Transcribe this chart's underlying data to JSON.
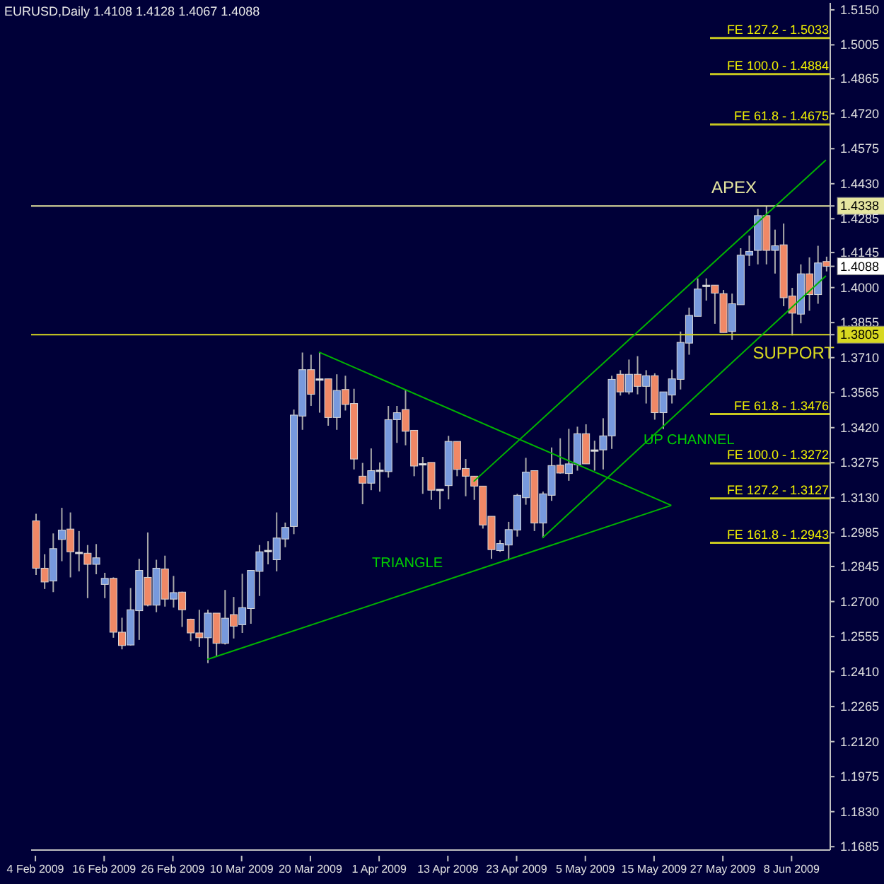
{
  "chart_data": {
    "type": "candlestick",
    "title": "EURUSD,Daily  1.4108 1.4128 1.4067 1.4088",
    "categories": [
      "4 Feb 2009",
      null,
      null,
      null,
      null,
      null,
      null,
      null,
      "16 Feb 2009",
      null,
      null,
      null,
      null,
      null,
      null,
      null,
      "26 Feb 2009",
      null,
      null,
      null,
      null,
      null,
      null,
      null,
      "10 Mar 2009",
      null,
      null,
      null,
      null,
      null,
      null,
      null,
      "20 Mar 2009",
      null,
      null,
      null,
      null,
      null,
      null,
      null,
      "1 Apr 2009",
      null,
      null,
      null,
      null,
      null,
      null,
      null,
      "13 Apr 2009",
      null,
      null,
      null,
      null,
      null,
      null,
      null,
      "23 Apr 2009",
      null,
      null,
      null,
      null,
      null,
      null,
      null,
      "5 May 2009",
      null,
      null,
      null,
      null,
      null,
      null,
      null,
      "15 May 2009",
      null,
      null,
      null,
      null,
      null,
      null,
      null,
      "27 May 2009",
      null,
      null,
      null,
      null,
      null,
      null,
      null,
      "8 Jun 2009",
      null,
      null,
      null,
      null
    ],
    "series": [
      {
        "type": "candlestick",
        "ohlc": [
          [
            1.3034,
            1.3063,
            1.281,
            1.2838
          ],
          [
            1.2838,
            1.2896,
            1.2752,
            1.2781
          ],
          [
            1.2785,
            1.2982,
            1.2739,
            1.2919
          ],
          [
            1.2957,
            1.3088,
            1.2867,
            1.2996
          ],
          [
            1.3,
            1.3069,
            1.28,
            1.2906
          ],
          [
            1.2904,
            1.2992,
            1.2825,
            1.29
          ],
          [
            1.29,
            1.2934,
            1.2714,
            1.2854
          ],
          [
            1.2854,
            1.2938,
            1.2813,
            1.2881
          ],
          [
            1.2771,
            1.2819,
            1.2714,
            1.2796
          ],
          [
            1.2796,
            1.28,
            1.255,
            1.2573
          ],
          [
            1.2573,
            1.2633,
            1.2502,
            1.2518
          ],
          [
            1.252,
            1.2756,
            1.2518,
            1.2666
          ],
          [
            1.2662,
            1.2877,
            1.2541,
            1.2829
          ],
          [
            1.28,
            1.2986,
            1.268,
            1.2685
          ],
          [
            1.2685,
            1.2873,
            1.2656,
            1.2838
          ],
          [
            1.2835,
            1.289,
            1.2679,
            1.271
          ],
          [
            1.271,
            1.2806,
            1.2675,
            1.2737
          ],
          [
            1.2739,
            1.2741,
            1.2595,
            1.2666
          ],
          [
            1.2627,
            1.2629,
            1.2537,
            1.257
          ],
          [
            1.257,
            1.2666,
            1.2512,
            1.255
          ],
          [
            1.255,
            1.2666,
            1.2445,
            1.2652
          ],
          [
            1.2652,
            1.2652,
            1.2474,
            1.2527
          ],
          [
            1.2527,
            1.2748,
            1.2522,
            1.2631
          ],
          [
            1.2646,
            1.2719,
            1.2547,
            1.2598
          ],
          [
            1.2604,
            1.2815,
            1.257,
            1.2675
          ],
          [
            1.2671,
            1.2829,
            1.2608,
            1.2829
          ],
          [
            1.2825,
            1.2934,
            1.2723,
            1.2906
          ],
          [
            1.2908,
            1.295,
            1.2854,
            1.2912
          ],
          [
            1.2873,
            1.3069,
            1.2825,
            1.2963
          ],
          [
            1.2959,
            1.3027,
            1.2925,
            1.3007
          ],
          [
            1.3011,
            1.3495,
            1.2979,
            1.3472
          ],
          [
            1.3468,
            1.3731,
            1.3411,
            1.366
          ],
          [
            1.366,
            1.3722,
            1.351,
            1.3558
          ],
          [
            1.3622,
            1.3731,
            1.3482,
            1.3616
          ],
          [
            1.3622,
            1.3622,
            1.3428,
            1.3462
          ],
          [
            1.3462,
            1.3641,
            1.3411,
            1.3574
          ],
          [
            1.3578,
            1.3635,
            1.3491,
            1.3516
          ],
          [
            1.352,
            1.3581,
            1.3247,
            1.329
          ],
          [
            1.3219,
            1.3274,
            1.3103,
            1.319
          ],
          [
            1.319,
            1.3334,
            1.3161,
            1.3242
          ],
          [
            1.3244,
            1.3276,
            1.3155,
            1.3242
          ],
          [
            1.3238,
            1.351,
            1.3213,
            1.3453
          ],
          [
            1.3453,
            1.351,
            1.3357,
            1.3482
          ],
          [
            1.3495,
            1.3578,
            1.3347,
            1.3405
          ],
          [
            1.3409,
            1.3409,
            1.3219,
            1.3261
          ],
          [
            1.3271,
            1.3299,
            1.3146,
            1.3269
          ],
          [
            1.3276,
            1.3276,
            1.3121,
            1.3161
          ],
          [
            1.3165,
            1.3165,
            1.3082,
            1.3163
          ],
          [
            1.318,
            1.3386,
            1.3123,
            1.3363
          ],
          [
            1.3363,
            1.3363,
            1.3219,
            1.3247
          ],
          [
            1.3251,
            1.329,
            1.3136,
            1.3219
          ],
          [
            1.3219,
            1.3219,
            1.3121,
            1.3178
          ],
          [
            1.3178,
            1.3178,
            1.3002,
            1.3017
          ],
          [
            1.3053,
            1.3053,
            1.2877,
            1.2915
          ],
          [
            1.2911,
            1.2954,
            1.2906,
            1.294
          ],
          [
            1.2934,
            1.303,
            1.2871,
            1.2998
          ],
          [
            1.2996,
            1.3146,
            1.2969,
            1.314
          ],
          [
            1.313,
            1.3295,
            1.3101,
            1.3236
          ],
          [
            1.3242,
            1.3242,
            1.2992,
            1.3025
          ],
          [
            1.3025,
            1.3155,
            1.2963,
            1.3146
          ],
          [
            1.314,
            1.3338,
            1.3117,
            1.3263
          ],
          [
            1.3265,
            1.3376,
            1.323,
            1.3232
          ],
          [
            1.323,
            1.3415,
            1.32,
            1.327
          ],
          [
            1.3267,
            1.3424,
            1.3242,
            1.3395
          ],
          [
            1.3395,
            1.3434,
            1.327,
            1.327
          ],
          [
            1.3328,
            1.3366,
            1.3242,
            1.3326
          ],
          [
            1.3328,
            1.3459,
            1.3247,
            1.3386
          ],
          [
            1.3386,
            1.3635,
            1.3332,
            1.362
          ],
          [
            1.3641,
            1.3658,
            1.3553,
            1.3568
          ],
          [
            1.3568,
            1.3702,
            1.3558,
            1.3641
          ],
          [
            1.3641,
            1.3716,
            1.3558,
            1.3591
          ],
          [
            1.3591,
            1.3658,
            1.352,
            1.3635
          ],
          [
            1.3635,
            1.3645,
            1.3453,
            1.3482
          ],
          [
            1.3482,
            1.3568,
            1.3414,
            1.3568
          ],
          [
            1.3555,
            1.366,
            1.352,
            1.3622
          ],
          [
            1.362,
            1.3818,
            1.3578,
            1.3773
          ],
          [
            1.377,
            1.3917,
            1.3722,
            1.3885
          ],
          [
            1.3881,
            1.4038,
            1.3881,
            1.3994
          ],
          [
            1.401,
            1.4038,
            1.3946,
            1.4008
          ],
          [
            1.401,
            1.401,
            1.385,
            1.3977
          ],
          [
            1.3975,
            1.399,
            1.3814,
            1.3814
          ],
          [
            1.3818,
            1.3975,
            1.3783,
            1.3933
          ],
          [
            1.3929,
            1.4163,
            1.3929,
            1.4134
          ],
          [
            1.4134,
            1.4215,
            1.409,
            1.415
          ],
          [
            1.4154,
            1.4326,
            1.4096,
            1.4298
          ],
          [
            1.4298,
            1.4338,
            1.4096,
            1.4154
          ],
          [
            1.4154,
            1.424,
            1.4058,
            1.4173
          ],
          [
            1.4177,
            1.4265,
            1.3923,
            1.3958
          ],
          [
            1.3965,
            1.3999,
            1.3802,
            1.3894
          ],
          [
            1.389,
            1.4096,
            1.3852,
            1.4057
          ],
          [
            1.4057,
            1.4125,
            1.3904,
            1.3971
          ],
          [
            1.3971,
            1.4173,
            1.3933,
            1.4102
          ],
          [
            1.4108,
            1.4128,
            1.4067,
            1.4088
          ]
        ],
        "colors": [
          "#f08866",
          "#f08866",
          "#7799dd",
          "#7799dd",
          "#f08866",
          "#e8e8e8",
          "#f08866",
          "#7799dd",
          "#7799dd",
          "#f08866",
          "#f08866",
          "#7799dd",
          "#7799dd",
          "#f08866",
          "#7799dd",
          "#f08866",
          "#7799dd",
          "#f08866",
          "#f08866",
          "#f08866",
          "#7799dd",
          "#f08866",
          "#7799dd",
          "#f08866",
          "#7799dd",
          "#7799dd",
          "#7799dd",
          "#e8e8e8",
          "#7799dd",
          "#7799dd",
          "#7799dd",
          "#7799dd",
          "#f08866",
          "#e8e8e8",
          "#f08866",
          "#7799dd",
          "#f08866",
          "#f08866",
          "#f08866",
          "#7799dd",
          "#e8e8e8",
          "#7799dd",
          "#7799dd",
          "#f08866",
          "#f08866",
          "#e8e8e8",
          "#f08866",
          "#e8e8e8",
          "#7799dd",
          "#f08866",
          "#f08866",
          "#f08866",
          "#f08866",
          "#f08866",
          "#7799dd",
          "#7799dd",
          "#7799dd",
          "#7799dd",
          "#f08866",
          "#7799dd",
          "#7799dd",
          "#f08866",
          "#7799dd",
          "#7799dd",
          "#f08866",
          "#e8e8e8",
          "#7799dd",
          "#7799dd",
          "#f08866",
          "#7799dd",
          "#f08866",
          "#7799dd",
          "#f08866",
          "#7799dd",
          "#7799dd",
          "#7799dd",
          "#7799dd",
          "#7799dd",
          "#e8e8e8",
          "#f08866",
          "#f08866",
          "#7799dd",
          "#7799dd",
          "#7799dd",
          "#7799dd",
          "#f08866",
          "#7799dd",
          "#f08866",
          "#f08866",
          "#7799dd",
          "#f08866",
          "#7799dd",
          "#f08866"
        ]
      },
      {
        "type": "line",
        "color": "#00b400",
        "values": [
          null,
          null,
          null,
          null,
          null,
          null,
          null,
          null,
          null,
          null,
          null,
          null,
          null,
          null,
          null,
          null,
          null,
          null,
          null,
          null,
          null,
          null,
          null,
          null,
          null,
          null,
          null,
          null,
          null,
          null,
          null,
          null,
          null,
          1.3733,
          null,
          null,
          null,
          null,
          null,
          null,
          null,
          null,
          null,
          null,
          null,
          null,
          null,
          null,
          null,
          null,
          null,
          null,
          null,
          null,
          null,
          null,
          null,
          null,
          null,
          null,
          null,
          null,
          null,
          null,
          null,
          null,
          null,
          null,
          null,
          null,
          null,
          null,
          null,
          null,
          1.3098,
          null,
          null,
          null,
          null,
          null,
          null,
          null,
          null,
          null,
          null,
          null,
          null,
          null,
          null,
          null,
          null,
          null,
          null
        ]
      },
      {
        "type": "line",
        "color": "#00b400",
        "values": [
          null,
          null,
          null,
          null,
          null,
          null,
          null,
          null,
          null,
          null,
          null,
          null,
          null,
          null,
          null,
          null,
          null,
          null,
          null,
          null,
          1.246,
          null,
          null,
          null,
          null,
          null,
          null,
          null,
          null,
          null,
          null,
          null,
          null,
          null,
          null,
          null,
          null,
          null,
          null,
          null,
          null,
          null,
          null,
          null,
          null,
          null,
          null,
          null,
          null,
          null,
          null,
          null,
          null,
          null,
          null,
          null,
          null,
          null,
          null,
          null,
          null,
          null,
          null,
          null,
          null,
          null,
          null,
          null,
          null,
          null,
          null,
          null,
          null,
          null,
          1.3098,
          null,
          null,
          null,
          null,
          null,
          null,
          null,
          null,
          null,
          null,
          null,
          null,
          null,
          null,
          null,
          null,
          null,
          null
        ]
      },
      {
        "type": "line",
        "color": "#00b400",
        "values": [
          null,
          null,
          null,
          null,
          null,
          null,
          null,
          null,
          null,
          null,
          null,
          null,
          null,
          null,
          null,
          null,
          null,
          null,
          null,
          null,
          null,
          null,
          null,
          null,
          null,
          null,
          null,
          null,
          null,
          null,
          null,
          null,
          null,
          null,
          null,
          null,
          null,
          null,
          null,
          null,
          null,
          null,
          null,
          null,
          null,
          null,
          null,
          null,
          null,
          null,
          null,
          1.3197,
          null,
          null,
          null,
          null,
          null,
          null,
          null,
          null,
          null,
          null,
          null,
          null,
          null,
          null,
          null,
          null,
          null,
          null,
          null,
          null,
          null,
          null,
          null,
          null,
          null,
          null,
          null,
          null,
          null,
          null,
          null,
          null,
          null,
          null,
          null,
          null,
          null,
          null,
          null,
          null,
          1.4528
        ]
      },
      {
        "type": "line",
        "color": "#00b400",
        "values": [
          null,
          null,
          null,
          null,
          null,
          null,
          null,
          null,
          null,
          null,
          null,
          null,
          null,
          null,
          null,
          null,
          null,
          null,
          null,
          null,
          null,
          null,
          null,
          null,
          null,
          null,
          null,
          null,
          null,
          null,
          null,
          null,
          null,
          null,
          null,
          null,
          null,
          null,
          null,
          null,
          null,
          null,
          null,
          null,
          null,
          null,
          null,
          null,
          null,
          null,
          null,
          null,
          null,
          null,
          null,
          null,
          null,
          null,
          null,
          1.2963,
          null,
          null,
          null,
          null,
          null,
          null,
          null,
          null,
          null,
          null,
          null,
          null,
          null,
          null,
          null,
          null,
          null,
          null,
          null,
          null,
          null,
          null,
          null,
          null,
          null,
          null,
          null,
          null,
          null,
          null,
          null,
          null,
          1.4049
        ]
      }
    ],
    "ylim": [
      1.1671,
      1.5179
    ],
    "yticks": [
      {
        "value": 1.515,
        "label": "1.5150"
      },
      {
        "value": 1.5005,
        "label": "1.5005"
      },
      {
        "value": 1.4865,
        "label": "1.4865"
      },
      {
        "value": 1.472,
        "label": "1.4720"
      },
      {
        "value": 1.4575,
        "label": "1.4575"
      },
      {
        "value": 1.443,
        "label": "1.4430"
      },
      {
        "value": 1.4338,
        "label": "1.4338"
      },
      {
        "value": 1.4285,
        "label": "1.4285"
      },
      {
        "value": 1.4145,
        "label": "1.4145"
      },
      {
        "value": 1.4088,
        "label": "1.4088"
      },
      {
        "value": 1.4,
        "label": "1.4000"
      },
      {
        "value": 1.3855,
        "label": "1.3855"
      },
      {
        "value": 1.3805,
        "label": "1.3805"
      },
      {
        "value": 1.371,
        "label": "1.3710"
      },
      {
        "value": 1.3565,
        "label": "1.3565"
      },
      {
        "value": 1.342,
        "label": "1.3420"
      },
      {
        "value": 1.3275,
        "label": "1.3275"
      },
      {
        "value": 1.313,
        "label": "1.3130"
      },
      {
        "value": 1.2985,
        "label": "1.2985"
      },
      {
        "value": 1.2845,
        "label": "1.2845"
      },
      {
        "value": 1.27,
        "label": "1.2700"
      },
      {
        "value": 1.2555,
        "label": "1.2555"
      },
      {
        "value": 1.241,
        "label": "1.2410"
      },
      {
        "value": 1.2265,
        "label": "1.2265"
      },
      {
        "value": 1.212,
        "label": "1.2120"
      },
      {
        "value": 1.1975,
        "label": "1.1975"
      },
      {
        "value": 1.183,
        "label": "1.1830"
      },
      {
        "value": 1.1685,
        "label": "1.1685"
      }
    ],
    "ref_lines": [
      {
        "axis": "y",
        "value": 1.4338,
        "label": "APEX",
        "color": "#e6e6a0"
      },
      {
        "axis": "y",
        "value": 1.3805,
        "label": "SUPPORT",
        "color": "#d8d820"
      },
      {
        "axis": "y",
        "value": 1.5033,
        "label": "FE 127.2 - 1.5033",
        "color": "#c8c820"
      },
      {
        "axis": "y",
        "value": 1.4884,
        "label": "FE 100.0 - 1.4884",
        "color": "#c8c820"
      },
      {
        "axis": "y",
        "value": 1.4675,
        "label": "FE 61.8 - 1.4675",
        "color": "#c8c820"
      },
      {
        "axis": "y",
        "value": 1.3476,
        "label": "FE 61.8 - 1.3476",
        "color": "#c8c820"
      },
      {
        "axis": "y",
        "value": 1.3272,
        "label": "FE 100.0 - 1.3272",
        "color": "#c8c820"
      },
      {
        "axis": "y",
        "value": 1.3127,
        "label": "FE 127.2 - 1.3127",
        "color": "#c8c820"
      },
      {
        "axis": "y",
        "value": 1.2943,
        "label": "FE 161.8 - 1.2943",
        "color": "#c8c820"
      }
    ],
    "annotations": [
      "TRIANGLE",
      "UP CHANNEL"
    ]
  }
}
